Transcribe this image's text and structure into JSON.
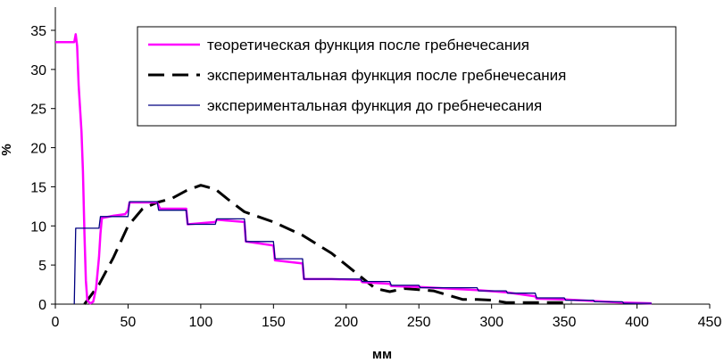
{
  "chart_data": {
    "type": "line",
    "title": "",
    "xlabel": "мм",
    "ylabel": "%",
    "xlim": [
      0,
      450
    ],
    "ylim": [
      0,
      35
    ],
    "xticks": [
      0,
      50,
      100,
      150,
      200,
      250,
      300,
      350,
      400,
      450
    ],
    "yticks": [
      0,
      5,
      10,
      15,
      20,
      25,
      30,
      35
    ],
    "grid": false,
    "legend_position": "top-right",
    "series": [
      {
        "name": "теоретическая функция после гребнечесания",
        "color": "#ff00ff",
        "style": "solid-thick",
        "points": [
          [
            0,
            33.5
          ],
          [
            13,
            33.5
          ],
          [
            14,
            34.5
          ],
          [
            15,
            33
          ],
          [
            16,
            28
          ],
          [
            18,
            22
          ],
          [
            19,
            17
          ],
          [
            20,
            9
          ],
          [
            21,
            3
          ],
          [
            22,
            0.5
          ],
          [
            24,
            0.1
          ],
          [
            26,
            0.3
          ],
          [
            28,
            2
          ],
          [
            30,
            6
          ],
          [
            31,
            9
          ],
          [
            32,
            11
          ],
          [
            40,
            11.3
          ],
          [
            48,
            11.5
          ],
          [
            50,
            12
          ],
          [
            51,
            13
          ],
          [
            70,
            13
          ],
          [
            72,
            12.2
          ],
          [
            90,
            12.2
          ],
          [
            91,
            10.2
          ],
          [
            110,
            10.5
          ],
          [
            111,
            10.8
          ],
          [
            130,
            10.5
          ],
          [
            131,
            8
          ],
          [
            150,
            7.5
          ],
          [
            151,
            5.6
          ],
          [
            170,
            5.2
          ],
          [
            171,
            3.2
          ],
          [
            190,
            3.2
          ],
          [
            210,
            3.1
          ],
          [
            211,
            2.8
          ],
          [
            230,
            2.6
          ],
          [
            231,
            2.3
          ],
          [
            250,
            2.2
          ],
          [
            270,
            2
          ],
          [
            290,
            1.8
          ],
          [
            310,
            1.5
          ],
          [
            330,
            1
          ],
          [
            331,
            0.7
          ],
          [
            350,
            0.6
          ],
          [
            370,
            0.4
          ],
          [
            390,
            0.2
          ],
          [
            410,
            0.1
          ]
        ]
      },
      {
        "name": "экспериментальная функция после гребнечесания",
        "color": "#000000",
        "style": "dashed",
        "points": [
          [
            20,
            0
          ],
          [
            30,
            2.5
          ],
          [
            40,
            6
          ],
          [
            50,
            10
          ],
          [
            60,
            12.2
          ],
          [
            70,
            13
          ],
          [
            80,
            13.5
          ],
          [
            90,
            14.5
          ],
          [
            100,
            15.2
          ],
          [
            110,
            14.7
          ],
          [
            120,
            13.2
          ],
          [
            130,
            11.8
          ],
          [
            150,
            10.5
          ],
          [
            170,
            8.8
          ],
          [
            190,
            6.5
          ],
          [
            200,
            5
          ],
          [
            210,
            3.5
          ],
          [
            220,
            2
          ],
          [
            230,
            1.6
          ],
          [
            240,
            2
          ],
          [
            260,
            1.7
          ],
          [
            280,
            0.6
          ],
          [
            290,
            0.6
          ],
          [
            300,
            0.5
          ],
          [
            310,
            0.2
          ],
          [
            330,
            0.2
          ],
          [
            355,
            0.2
          ]
        ]
      },
      {
        "name": "экспериментальная функция до гребнечесания",
        "color": "#000080",
        "style": "solid-thin",
        "points": [
          [
            13,
            0
          ],
          [
            14,
            9.7
          ],
          [
            30,
            9.7
          ],
          [
            31,
            11.2
          ],
          [
            50,
            11.2
          ],
          [
            51,
            13.1
          ],
          [
            70,
            13.1
          ],
          [
            71,
            12
          ],
          [
            90,
            12
          ],
          [
            91,
            10.2
          ],
          [
            110,
            10.2
          ],
          [
            111,
            10.9
          ],
          [
            130,
            10.9
          ],
          [
            131,
            8
          ],
          [
            150,
            8
          ],
          [
            151,
            5.8
          ],
          [
            170,
            5.8
          ],
          [
            171,
            3.2
          ],
          [
            210,
            3.2
          ],
          [
            211,
            2.9
          ],
          [
            230,
            2.9
          ],
          [
            231,
            2.4
          ],
          [
            250,
            2.4
          ],
          [
            251,
            2.1
          ],
          [
            290,
            2.1
          ],
          [
            291,
            1.7
          ],
          [
            310,
            1.7
          ],
          [
            311,
            1.4
          ],
          [
            330,
            1.4
          ],
          [
            331,
            0.8
          ],
          [
            350,
            0.8
          ],
          [
            351,
            0.5
          ],
          [
            370,
            0.5
          ],
          [
            371,
            0.3
          ],
          [
            390,
            0.3
          ],
          [
            391,
            0.1
          ],
          [
            410,
            0.1
          ]
        ]
      }
    ]
  }
}
